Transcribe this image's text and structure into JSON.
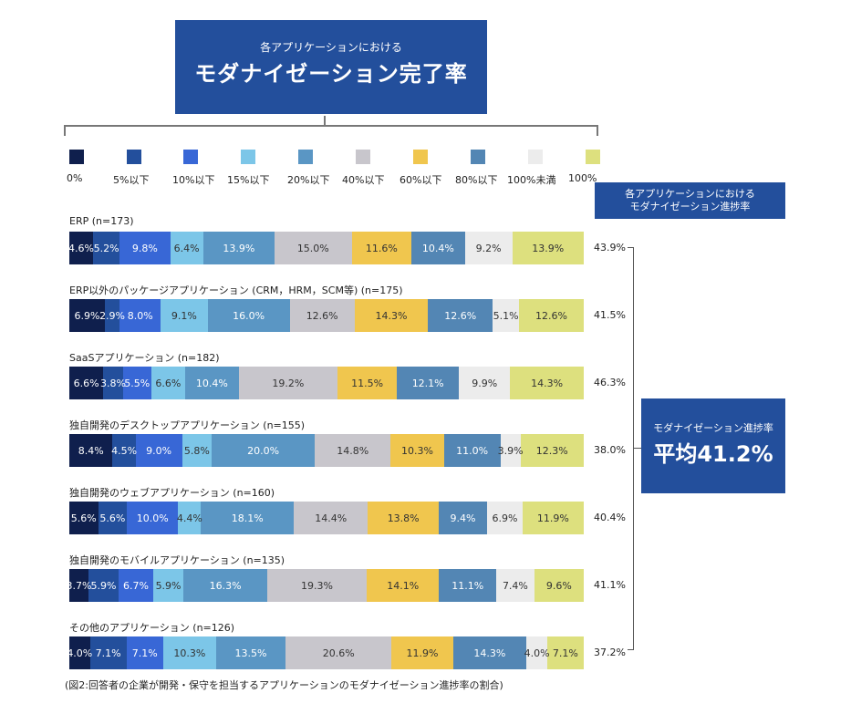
{
  "header": {
    "subtitle": "各アプリケーションにおける",
    "title": "モダナイゼーション完了率"
  },
  "progress_header": {
    "line1": "各アプリケーションにおける",
    "line2": "モダナイゼーション進捗率"
  },
  "average_box": {
    "label": "モダナイゼーション進捗率",
    "value": "平均41.2%"
  },
  "caption": "(図2:回答者の企業が開発・保守を担当するアプリケーションのモダナイゼーション進捗率の割合)",
  "colors": {
    "c0": "#0f1f4d",
    "c5": "#234f9c",
    "c10": "#3867d6",
    "c15": "#7cc6e8",
    "c20": "#5a96c4",
    "c40": "#c8c6cc",
    "c60": "#f0c64e",
    "c80": "#5386b4",
    "c100u": "#ececec",
    "c100": "#dde07e"
  },
  "chart_data": {
    "type": "bar",
    "orientation": "horizontal",
    "stacked": true,
    "normalized": true,
    "legend": {
      "placement": "top",
      "entries": [
        "0%",
        "5%以下",
        "10%以下",
        "15%以下",
        "20%以下",
        "40%以下",
        "60%以下",
        "80%以下",
        "100%未満",
        "100%"
      ]
    },
    "categories": [
      "ERP (n=173)",
      "ERP以外のパッケージアプリケーション (CRM，HRM，SCM等) (n=175)",
      "SaaSアプリケーション (n=182)",
      "独自開発のデスクトップアプリケーション (n=155)",
      "独自開発のウェブアプリケーション (n=160)",
      "独自開発のモバイルアプリケーション (n=135)",
      "その他のアプリケーション (n=126)"
    ],
    "series": [
      {
        "name": "0%",
        "values": [
          4.6,
          6.9,
          6.6,
          8.4,
          5.6,
          3.7,
          4.0
        ]
      },
      {
        "name": "5%以下",
        "values": [
          5.2,
          2.9,
          3.8,
          4.5,
          5.6,
          5.9,
          7.1
        ]
      },
      {
        "name": "10%以下",
        "values": [
          9.8,
          8.0,
          5.5,
          9.0,
          10.0,
          6.7,
          7.1
        ]
      },
      {
        "name": "15%以下",
        "values": [
          6.4,
          9.1,
          6.6,
          5.8,
          4.4,
          5.9,
          10.3
        ]
      },
      {
        "name": "20%以下",
        "values": [
          13.9,
          16.0,
          10.4,
          20.0,
          18.1,
          16.3,
          13.5
        ]
      },
      {
        "name": "40%以下",
        "values": [
          15.0,
          12.6,
          19.2,
          14.8,
          14.4,
          19.3,
          20.6
        ]
      },
      {
        "name": "60%以下",
        "values": [
          11.6,
          14.3,
          11.5,
          10.3,
          13.8,
          14.1,
          11.9
        ]
      },
      {
        "name": "80%以下",
        "values": [
          10.4,
          12.6,
          12.1,
          11.0,
          9.4,
          11.1,
          14.3
        ]
      },
      {
        "name": "100%未満",
        "values": [
          9.2,
          5.1,
          9.9,
          3.9,
          6.9,
          7.4,
          4.0
        ]
      },
      {
        "name": "100%",
        "values": [
          13.9,
          12.6,
          14.3,
          12.3,
          11.9,
          9.6,
          7.1
        ]
      }
    ],
    "progress_rates": [
      "43.9%",
      "41.5%",
      "46.3%",
      "38.0%",
      "40.4%",
      "41.1%",
      "37.2%"
    ]
  }
}
